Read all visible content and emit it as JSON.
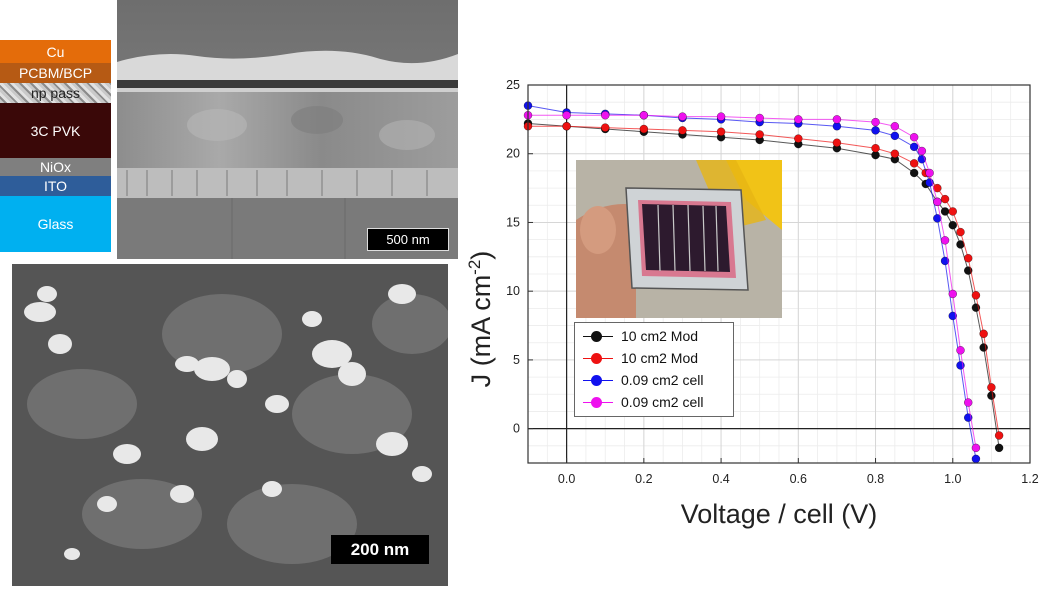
{
  "stack": {
    "layers": [
      {
        "label": "Cu",
        "color": "#e46c0a"
      },
      {
        "label": "PCBM/BCP",
        "color": "#b65a14"
      },
      {
        "label": "np pass",
        "color": "#a0a0a0"
      },
      {
        "label": "3C PVK",
        "color": "#3a0808"
      },
      {
        "label": "NiOx",
        "color": "#7f7f7f"
      },
      {
        "label": "ITO",
        "color": "#2e5d9a"
      },
      {
        "label": "Glass",
        "color": "#00b0f0"
      }
    ]
  },
  "sem_cross_section": {
    "scale_label": "500 nm"
  },
  "sem_surface": {
    "scale_label": "200 nm"
  },
  "chart_data": {
    "type": "scatter",
    "xlabel": "Voltage / cell (V)",
    "ylabel_main": "J (mA cm",
    "ylabel_sup": "-2",
    "ylabel_close": ")",
    "xlim": [
      -0.1,
      1.2
    ],
    "ylim": [
      -2.5,
      25
    ],
    "x_ticks": [
      "0.0",
      "0.2",
      "0.4",
      "0.6",
      "0.8",
      "1.0",
      "1.2"
    ],
    "x_tick_values": [
      0.0,
      0.2,
      0.4,
      0.6,
      0.8,
      1.0,
      1.2
    ],
    "y_ticks": [
      "0",
      "5",
      "10",
      "15",
      "20",
      "25"
    ],
    "y_tick_values": [
      0,
      5,
      10,
      15,
      20,
      25
    ],
    "grid": true,
    "legend_position": "lower-left",
    "series": [
      {
        "name": "10 cm2 Mod",
        "color": "#111111",
        "x": [
          -0.1,
          0.0,
          0.1,
          0.2,
          0.3,
          0.4,
          0.5,
          0.6,
          0.7,
          0.8,
          0.85,
          0.9,
          0.93,
          0.96,
          0.98,
          1.0,
          1.02,
          1.04,
          1.06,
          1.08,
          1.1,
          1.12
        ],
        "y": [
          22.2,
          22.0,
          21.8,
          21.6,
          21.4,
          21.2,
          21.0,
          20.7,
          20.4,
          19.9,
          19.6,
          18.6,
          17.8,
          16.5,
          15.8,
          14.8,
          13.4,
          11.5,
          8.8,
          5.9,
          2.4,
          -1.4
        ]
      },
      {
        "name": "10 cm2 Mod",
        "color": "#ee1111",
        "x": [
          -0.1,
          0.0,
          0.1,
          0.2,
          0.3,
          0.4,
          0.5,
          0.6,
          0.7,
          0.8,
          0.85,
          0.9,
          0.93,
          0.96,
          0.98,
          1.0,
          1.02,
          1.04,
          1.06,
          1.08,
          1.1,
          1.12
        ],
        "y": [
          22.0,
          22.0,
          21.9,
          21.8,
          21.7,
          21.6,
          21.4,
          21.1,
          20.8,
          20.4,
          20.0,
          19.3,
          18.6,
          17.5,
          16.7,
          15.8,
          14.3,
          12.4,
          9.7,
          6.9,
          3.0,
          -0.5
        ]
      },
      {
        "name": "0.09 cm2 cell",
        "color": "#1111ee",
        "x": [
          -0.1,
          0.0,
          0.1,
          0.2,
          0.3,
          0.4,
          0.5,
          0.6,
          0.7,
          0.8,
          0.85,
          0.9,
          0.92,
          0.94,
          0.96,
          0.98,
          1.0,
          1.02,
          1.04,
          1.06
        ],
        "y": [
          23.5,
          23.0,
          22.9,
          22.8,
          22.6,
          22.5,
          22.3,
          22.2,
          22.0,
          21.7,
          21.3,
          20.5,
          19.6,
          17.9,
          15.3,
          12.2,
          8.2,
          4.6,
          0.8,
          -2.2
        ]
      },
      {
        "name": "0.09 cm2 cell",
        "color": "#ee11ee",
        "x": [
          -0.1,
          0.0,
          0.1,
          0.2,
          0.3,
          0.4,
          0.5,
          0.6,
          0.7,
          0.8,
          0.85,
          0.9,
          0.92,
          0.94,
          0.96,
          0.98,
          1.0,
          1.02,
          1.04,
          1.06
        ],
        "y": [
          22.8,
          22.8,
          22.8,
          22.8,
          22.7,
          22.7,
          22.6,
          22.5,
          22.5,
          22.3,
          22.0,
          21.2,
          20.2,
          18.6,
          16.5,
          13.7,
          9.8,
          5.7,
          1.9,
          -1.4
        ]
      }
    ]
  }
}
